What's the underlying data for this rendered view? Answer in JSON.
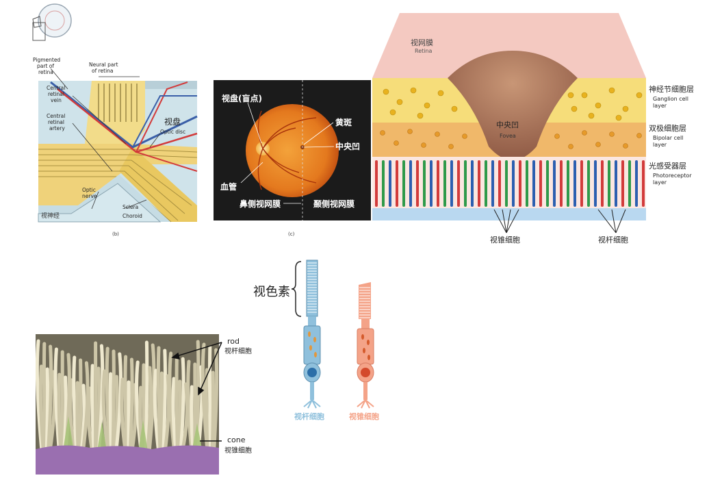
{
  "panel_b": {
    "caption": "(b)",
    "labels": {
      "pigmented": [
        "Pigmented",
        "part of",
        "retina"
      ],
      "neural": [
        "Neural part",
        "of retina"
      ],
      "vein": [
        "Central",
        "retinal",
        "vein"
      ],
      "artery": [
        "Central",
        "retinal",
        "artery"
      ],
      "optic_disc_zh": "视盘",
      "optic_disc_en": "Optic disc",
      "optic_nerve_zh": "视神经",
      "optic_nerve_en": [
        "Optic",
        "nerve"
      ],
      "sclera": "Sclera",
      "choroid": "Choroid"
    }
  },
  "panel_c": {
    "caption": "(c)",
    "labels": {
      "disc": "视盘(盲点)",
      "macula": "黄斑",
      "fovea": "中央凹",
      "vessel": "血管",
      "nasal": "鼻侧视网膜",
      "temporal": "颞侧视网膜"
    }
  },
  "panel_fovea": {
    "retina_zh": "视网膜",
    "retina_en": "Retina",
    "fovea_zh": "中央凹",
    "fovea_en": "Fovea",
    "layers": [
      {
        "zh": "神经节细胞层",
        "en": [
          "Ganglion cell",
          "layer"
        ]
      },
      {
        "zh": "双极细胞层",
        "en": [
          "Bipolar cell",
          "layer"
        ]
      },
      {
        "zh": "光感受器层",
        "en": [
          "Photoreceptor",
          "layer"
        ]
      }
    ],
    "cone_label": "视锥细胞",
    "rod_label": "视杆细胞",
    "colors": {
      "tissue": "#f4c9c1",
      "pit": "#b7826a",
      "ganglion": "#f3d04a",
      "bipolar": "#e9a33c",
      "base": "#b9d8f0"
    }
  },
  "panel_sem": {
    "rod_en": "rod",
    "rod_zh": "视杆细胞",
    "cone_en": "cone",
    "cone_zh": "视锥细胞",
    "colors": {
      "fibers": "#d8d2b6",
      "cones": "#a8c47a",
      "base": "#9a6fb0"
    }
  },
  "panel_cells": {
    "pigment_label": "视色素",
    "rod_label": "视杆细胞",
    "cone_label": "视锥细胞",
    "colors": {
      "rod": "#8fc0dc",
      "cone": "#f4a388",
      "rod_nucleus": "#2b6ea8",
      "cone_nucleus": "#d44a2c"
    }
  }
}
